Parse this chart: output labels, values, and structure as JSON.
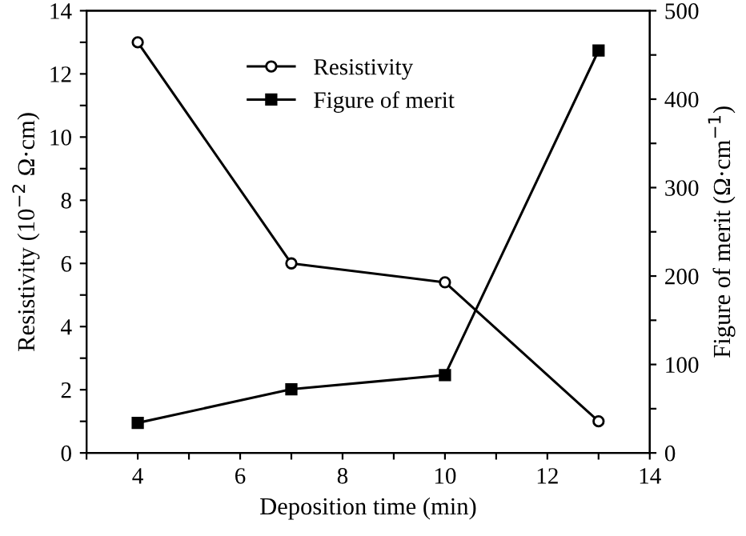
{
  "chart_data": {
    "type": "line",
    "xlabel": "Deposition time (min)",
    "ylabel": "Resistivity (10$^{−2}$ Ω·cm)",
    "y2label": "Figure of merit (Ω·cm$^{−1}$)",
    "x": [
      4,
      7,
      10,
      13
    ],
    "series": [
      {
        "name": "Resistivity",
        "color": "#000000",
        "values": [
          13,
          6,
          5.4,
          1.0
        ],
        "marker": "circle"
      },
      {
        "name": "Figure of merit",
        "color": "#000000",
        "values": [
          34,
          72,
          88,
          455
        ],
        "marker": "square",
        "axis": "y2"
      }
    ],
    "xlim": [
      3,
      14
    ],
    "xticks": [
      {
        "value": 3,
        "label": null
      },
      4,
      {
        "value": 5,
        "label": null
      },
      6,
      {
        "value": 7,
        "label": null
      },
      8,
      {
        "value": 9,
        "label": null
      },
      10,
      {
        "value": 11,
        "label": null
      },
      12,
      {
        "value": 13,
        "label": null
      },
      14
    ],
    "ylim": [
      0,
      14
    ],
    "yticks": [
      0,
      {
        "value": 1,
        "label": null
      },
      2,
      {
        "value": 3,
        "label": null
      },
      4,
      {
        "value": 5,
        "label": null
      },
      6,
      {
        "value": 7,
        "label": null
      },
      8,
      {
        "value": 9,
        "label": null
      },
      10,
      {
        "value": 11,
        "label": null
      },
      12,
      {
        "value": 13,
        "label": null
      },
      14
    ],
    "y2lim": [
      0,
      500
    ],
    "y2ticks": [
      0,
      {
        "value": 50,
        "label": null
      },
      100,
      {
        "value": 150,
        "label": null
      },
      200,
      {
        "value": 250,
        "label": null
      },
      300,
      {
        "value": 350,
        "label": null
      },
      400,
      {
        "value": 450,
        "label": null
      },
      500
    ],
    "legend": "top center",
    "line_style": "solid",
    "grid": false
  }
}
